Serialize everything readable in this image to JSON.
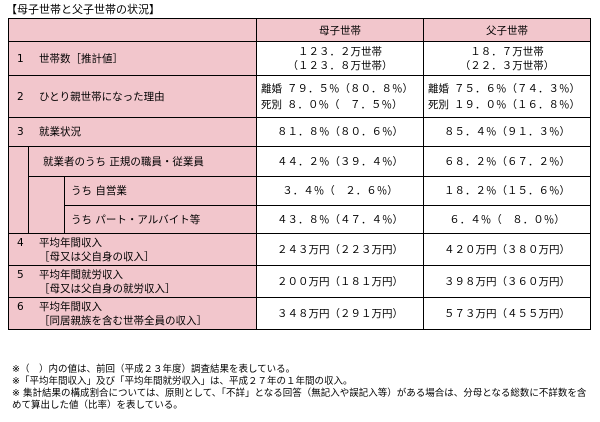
{
  "title": "【母子世帯と父子世帯の状況】",
  "header": {
    "col_mother": "母子世帯",
    "col_father": "父子世帯"
  },
  "rows": {
    "r1": {
      "num": "1",
      "label": "世帯数［推計値］",
      "mother_main": "１２３．２万世帯",
      "mother_prev": "（１２３．８万世帯）",
      "father_main": "１８．７万世帯",
      "father_prev": "（２２．３万世帯）"
    },
    "r2": {
      "num": "2",
      "label": "ひとり親世帯になった理由",
      "m_divorce_lbl": "離婚",
      "m_divorce": "７９．５％（８０．８％）",
      "m_death_lbl": "死別",
      "m_death": "８．０％（　７．５％）",
      "f_divorce_lbl": "離婚",
      "f_divorce": "７５．６％（７４．３％）",
      "f_death_lbl": "死別",
      "f_death": "１９．０％（１６．８％）"
    },
    "r3": {
      "num": "3",
      "label": "就業状況",
      "mother": "８１．８％（８０．６％）",
      "father": "８５．４％（９１．３％）"
    },
    "r3a": {
      "label": "就業者のうち 正規の職員・従業員",
      "mother": "４４．２％（３９．４％）",
      "father": "６８．２％（６７．２％）"
    },
    "r3b": {
      "label": "うち 自営業",
      "mother": "３．４％（　２．６％）",
      "father": "１８．２％（１５．６％）"
    },
    "r3c": {
      "label": "うち パート・アルバイト等",
      "mother": "４３．８％（４７．４％）",
      "father": "６．４％（　８．０％）"
    },
    "r4": {
      "num": "4",
      "label": "平均年間収入",
      "sub": "［母又は父自身の収入］",
      "mother": "２４３万円（２２３万円）",
      "father": "４２０万円（３８０万円）"
    },
    "r5": {
      "num": "5",
      "label": "平均年間就労収入",
      "sub": "［母又は父自身の就労収入］",
      "mother": "２００万円（１８１万円）",
      "father": "３９８万円（３６０万円）"
    },
    "r6": {
      "num": "6",
      "label": "平均年間収入",
      "sub": "［同居親族を含む世帯全員の収入］",
      "mother": "３４８万円（２９１万円）",
      "father": "５７３万円（４５５万円）"
    }
  },
  "notes": {
    "n1": "※（　）内の値は、前回（平成２３年度）調査結果を表している。",
    "n2": "※「平均年間収入」及び「平均年間就労収入」は、平成２７年の１年間の収入。",
    "n3": "※ 集計結果の構成割合については、原則として、「不詳」となる回答（無記入や誤記入等）がある場合は、分母となる総数に不詳数を含めて算出した値（比率）を表している。"
  },
  "colors": {
    "header_bg": "#f2c6cc",
    "border": "#000000"
  }
}
